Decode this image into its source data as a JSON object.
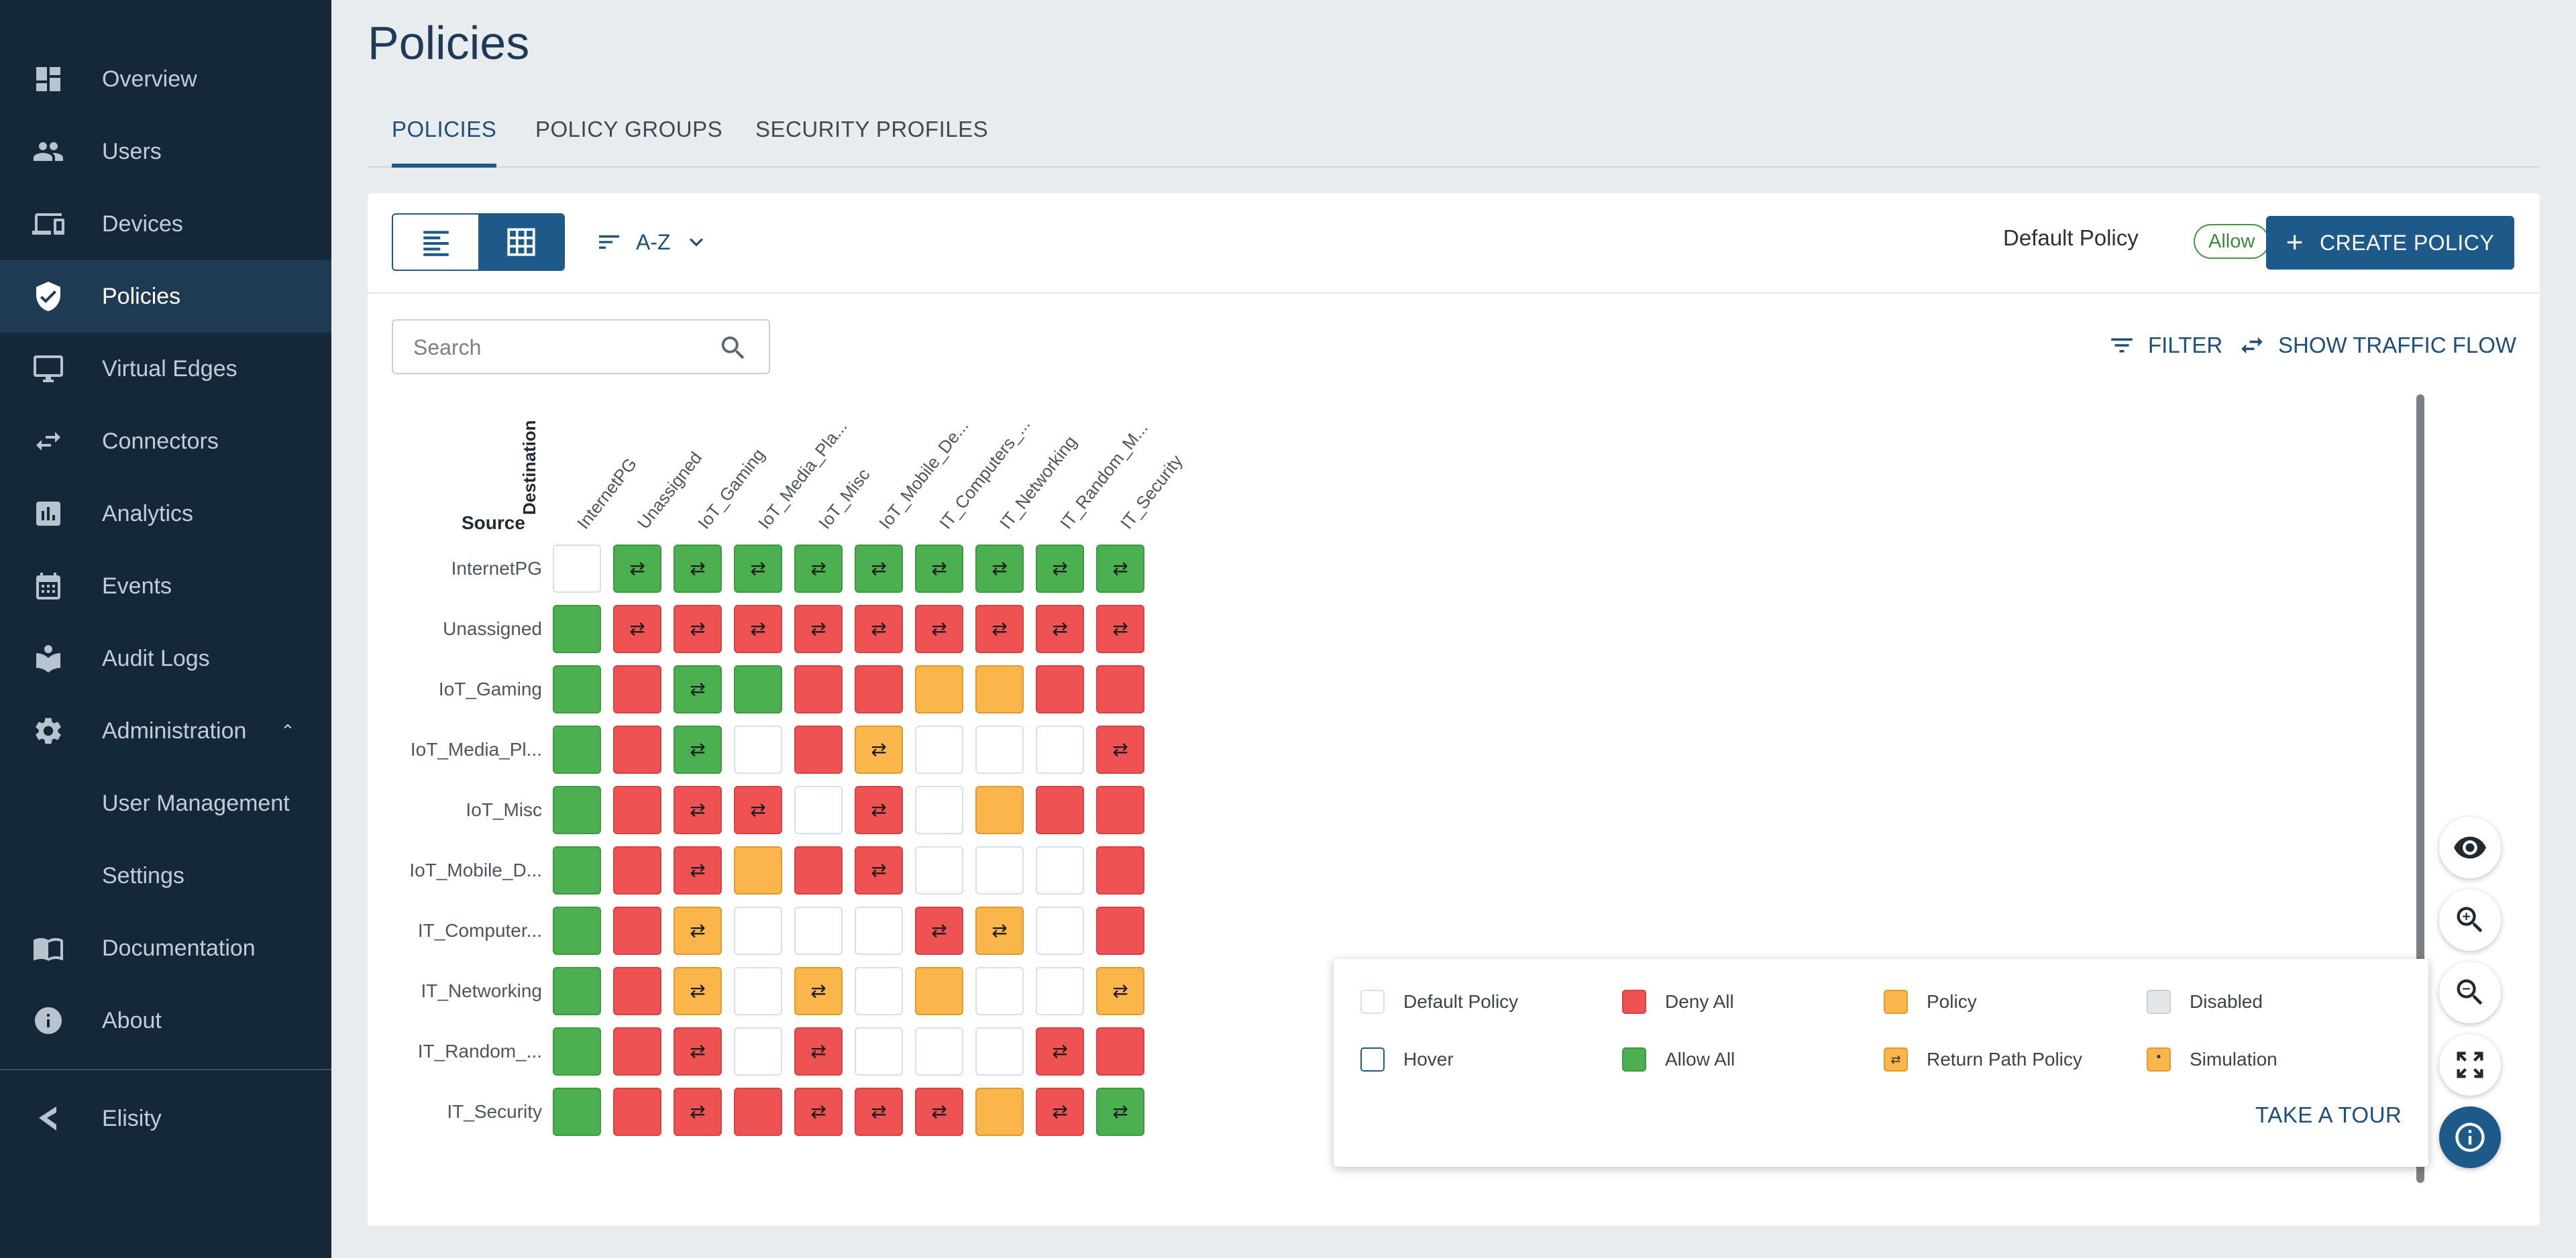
{
  "sidebar": {
    "items": [
      {
        "label": "Overview",
        "icon": "dashboard-icon"
      },
      {
        "label": "Users",
        "icon": "users-icon"
      },
      {
        "label": "Devices",
        "icon": "devices-icon"
      },
      {
        "label": "Policies",
        "icon": "shield-icon",
        "active": true
      },
      {
        "label": "Virtual Edges",
        "icon": "monitor-icon"
      },
      {
        "label": "Connectors",
        "icon": "swap-icon"
      },
      {
        "label": "Analytics",
        "icon": "analytics-icon"
      },
      {
        "label": "Events",
        "icon": "calendar-icon"
      },
      {
        "label": "Audit Logs",
        "icon": "audit-icon"
      },
      {
        "label": "Administration",
        "icon": "gear-icon",
        "expanded": true
      },
      {
        "label": "User Management"
      },
      {
        "label": "Settings"
      },
      {
        "label": "Documentation",
        "icon": "book-icon"
      },
      {
        "label": "About",
        "icon": "info-icon"
      }
    ],
    "brand": {
      "label": "Elisity",
      "icon": "elisity-logo-icon"
    }
  },
  "page": {
    "title": "Policies"
  },
  "tabs": [
    {
      "label": "POLICIES",
      "active": true
    },
    {
      "label": "POLICY GROUPS"
    },
    {
      "label": "SECURITY PROFILES"
    }
  ],
  "toolbar": {
    "sort_label": "A-Z",
    "default_policy_label": "Default Policy",
    "default_policy_value": "Allow",
    "create_label": "CREATE POLICY",
    "search_placeholder": "Search",
    "filter_label": "FILTER",
    "traffic_label": "SHOW TRAFFIC FLOW"
  },
  "matrix": {
    "source_label": "Source",
    "destination_label": "Destination",
    "columns": [
      "InternetPG",
      "Unassigned",
      "IoT_Gaming",
      "IoT_Media_Pla...",
      "IoT_Misc",
      "IoT_Mobile_De...",
      "IT_Computers_...",
      "IT_Networking",
      "IT_Random_M...",
      "IT_Security"
    ],
    "rows": [
      "InternetPG",
      "Unassigned",
      "IoT_Gaming",
      "IoT_Media_Pl...",
      "IoT_Misc",
      "IoT_Mobile_D...",
      "IT_Computer...",
      "IT_Networking",
      "IT_Random_...",
      "IT_Security"
    ],
    "cells": [
      [
        "W",
        "GA",
        "GA",
        "GA",
        "GA",
        "GA",
        "GA",
        "GA",
        "GA",
        "GA"
      ],
      [
        "G",
        "RA",
        "RA",
        "RA",
        "RA",
        "RA",
        "RA",
        "RA",
        "RA",
        "RA"
      ],
      [
        "G",
        "R",
        "GA",
        "G",
        "R",
        "R",
        "O",
        "O",
        "R",
        "R"
      ],
      [
        "G",
        "R",
        "GA",
        "W",
        "R",
        "OA",
        "W",
        "W",
        "W",
        "RA"
      ],
      [
        "G",
        "R",
        "RA",
        "RA",
        "W",
        "RA",
        "W",
        "O",
        "R",
        "R"
      ],
      [
        "G",
        "R",
        "RA",
        "O",
        "R",
        "RA",
        "W",
        "W",
        "W",
        "R"
      ],
      [
        "G",
        "R",
        "OA",
        "W",
        "W",
        "W",
        "RA",
        "OA",
        "W",
        "R"
      ],
      [
        "G",
        "R",
        "OA",
        "W",
        "OA",
        "W",
        "O",
        "W",
        "W",
        "OA"
      ],
      [
        "G",
        "R",
        "RA",
        "W",
        "RA",
        "W",
        "W",
        "W",
        "RA",
        "R"
      ],
      [
        "G",
        "R",
        "RA",
        "R",
        "RA",
        "RA",
        "RA",
        "O",
        "RA",
        "GA"
      ]
    ],
    "arrow_glyph": "⇄"
  },
  "legend": {
    "items": [
      {
        "label": "Default Policy",
        "swatch": "#ffffff"
      },
      {
        "label": "Deny All",
        "swatch": "#ee5253"
      },
      {
        "label": "Policy",
        "swatch": "#fbb64b"
      },
      {
        "label": "Disabled",
        "swatch": "#e4e7ea"
      },
      {
        "label": "Hover",
        "swatch": "#ffffff"
      },
      {
        "label": "Allow All",
        "swatch": "#4caf50"
      },
      {
        "label": "Return Path Policy",
        "swatch": "#fbb64b"
      },
      {
        "label": "Simulation",
        "swatch": "#fbb64b"
      }
    ],
    "tour_label": "TAKE A TOUR"
  },
  "colors": {
    "accent": "#1d5a8a",
    "sidebar_bg": "#14283a",
    "deny": "#ee5253",
    "allow": "#4caf50",
    "policy": "#fbb64b"
  },
  "side_buttons": [
    "eye-icon",
    "zoom-in-icon",
    "zoom-out-icon",
    "fullscreen-icon",
    "info-icon"
  ]
}
